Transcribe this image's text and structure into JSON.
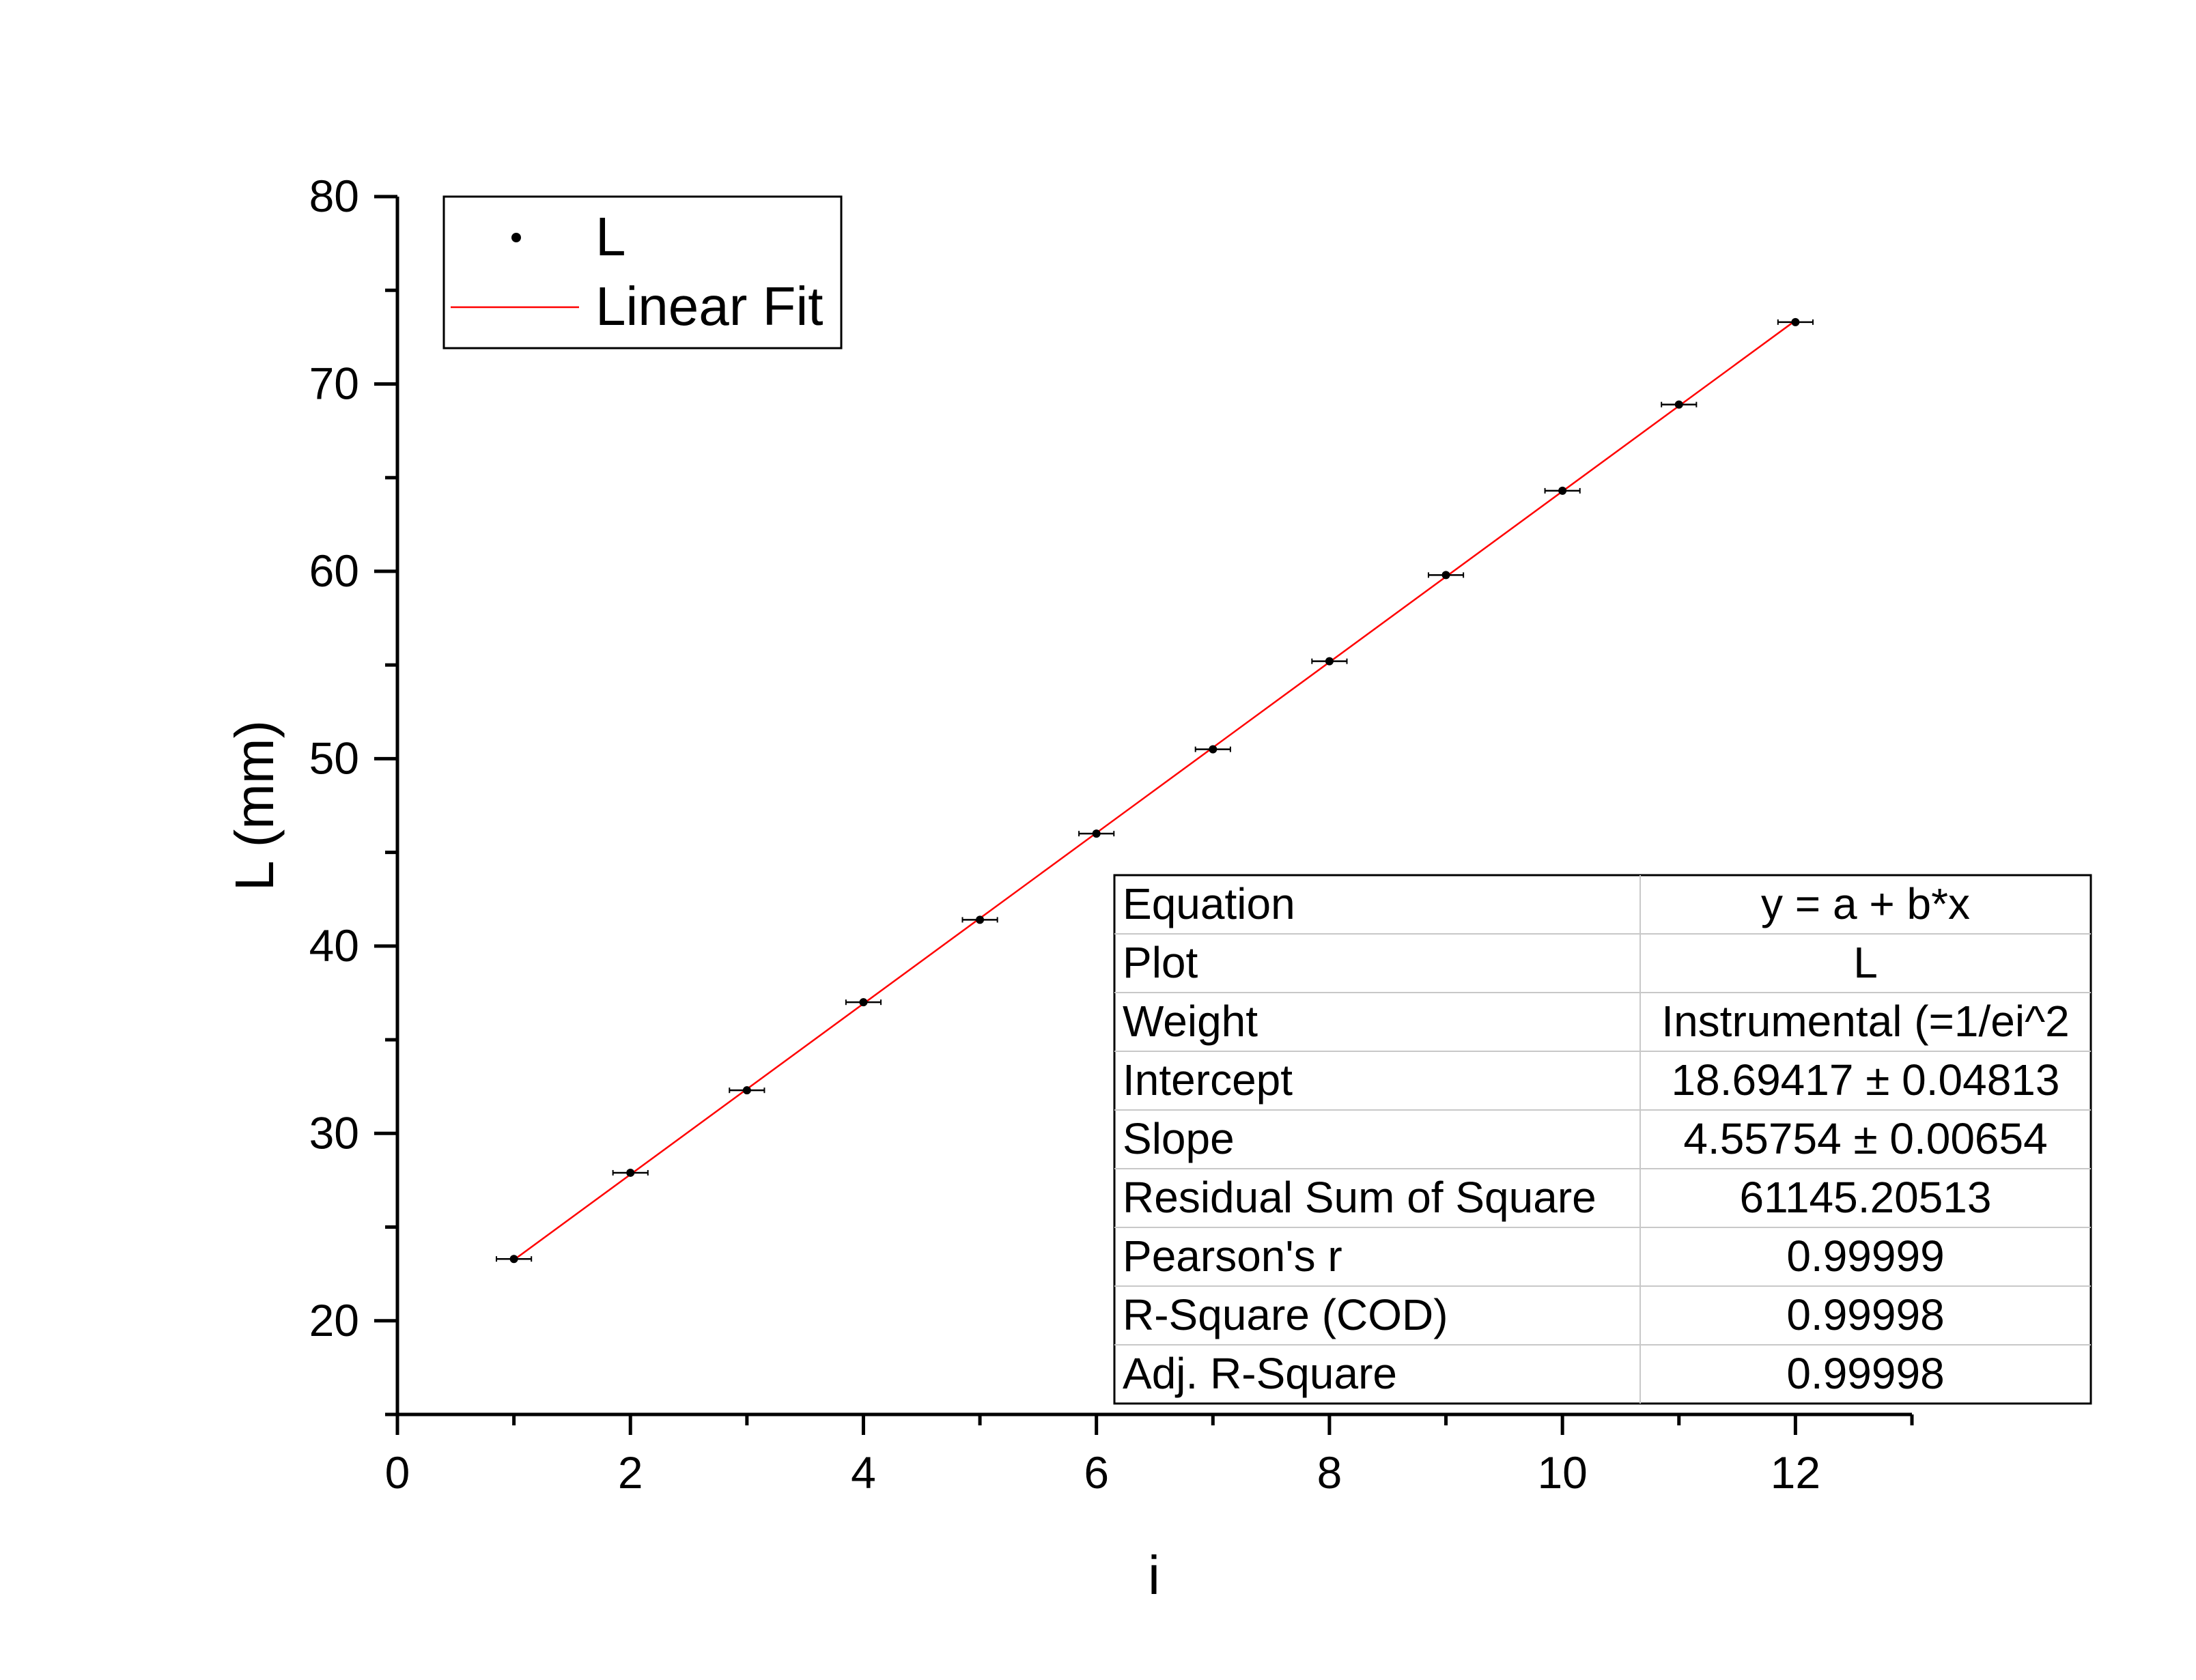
{
  "chart_data": {
    "type": "scatter",
    "title": "",
    "xlabel": "i",
    "ylabel": "L (mm)",
    "xlim": [
      0,
      13
    ],
    "ylim": [
      15,
      80
    ],
    "x_ticks": [
      0,
      2,
      4,
      6,
      8,
      10,
      12
    ],
    "y_ticks": [
      20,
      30,
      40,
      50,
      60,
      70,
      80
    ],
    "grid": false,
    "legend_position": "top-left",
    "series": [
      {
        "name": "L",
        "kind": "scatter",
        "color": "#000000",
        "x": [
          1,
          2,
          3,
          4,
          5,
          6,
          7,
          8,
          9,
          10,
          11,
          12
        ],
        "y": [
          23.3,
          27.9,
          32.3,
          37.0,
          41.4,
          46.0,
          50.5,
          55.2,
          59.8,
          64.3,
          68.9,
          73.3
        ],
        "x_error": 0.15
      },
      {
        "name": "Linear Fit",
        "kind": "line",
        "color": "#ff0000",
        "intercept": 18.69417,
        "slope": 4.55754,
        "x_range": [
          1,
          12
        ]
      }
    ],
    "fit_table": [
      {
        "label": "Equation",
        "value": "y = a + b*x"
      },
      {
        "label": "Plot",
        "value": "L"
      },
      {
        "label": "Weight",
        "value": "Instrumental (=1/ei^2"
      },
      {
        "label": "Intercept",
        "value": "18.69417 ± 0.04813"
      },
      {
        "label": "Slope",
        "value": "4.55754 ± 0.00654"
      },
      {
        "label": "Residual Sum of Square",
        "value": "61145.20513"
      },
      {
        "label": "Pearson's r",
        "value": "0.99999"
      },
      {
        "label": "R-Square (COD)",
        "value": "0.99998"
      },
      {
        "label": "Adj. R-Square",
        "value": "0.99998"
      }
    ]
  }
}
